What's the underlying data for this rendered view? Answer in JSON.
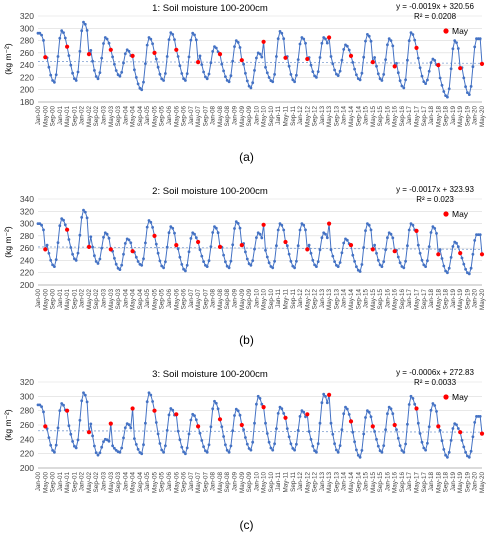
{
  "figure": {
    "captions": [
      "(a)",
      "(b)",
      "(c)"
    ]
  },
  "style": {
    "line_color": "#4472C4",
    "point_color": "#4472C4",
    "may_color": "#FF0000",
    "trend_color": "#7F9FD0",
    "grid_color": "#D9D9D9"
  },
  "chart_data": [
    {
      "type": "line",
      "title": "1: Soil moisture 100-200cm",
      "ylabel": "(kg m⁻²)",
      "ylim": [
        180,
        320
      ],
      "yticks": [
        180,
        200,
        220,
        240,
        260,
        280,
        300,
        320
      ],
      "grid": true,
      "legend": {
        "label": "May",
        "position": "top-right"
      },
      "equation": "y = -0.0019x + 320.56",
      "r2": "R² = 0.0208",
      "x_start": "2000-01",
      "xtick_labels": [
        "Jan-00",
        "May-00",
        "Sep-00",
        "Jan-01",
        "May-01",
        "Sep-01",
        "Jan-02",
        "May-02",
        "Sep-02",
        "Jan-03",
        "May-03",
        "Sep-03",
        "Jan-04",
        "May-04",
        "Sep-04",
        "Jan-05",
        "May-05",
        "Sep-05",
        "Jan-06",
        "May-06",
        "Sep-06",
        "Jan-07",
        "May-07",
        "Sep-07",
        "Jan-08",
        "May-08",
        "Sep-08",
        "Jan-09",
        "May-09",
        "Sep-09",
        "Jan-10",
        "May-10",
        "Sep-10",
        "Jan-11",
        "May-11",
        "Sep-11",
        "Jan-12",
        "May-12",
        "Sep-12",
        "Jan-13",
        "May-13",
        "Sep-13",
        "Jan-14",
        "May-14",
        "Sep-14",
        "Jan-15",
        "May-15",
        "Sep-15",
        "Jan-16",
        "May-16",
        "Sep-16",
        "Jan-17",
        "May-17",
        "Sep-17",
        "Jan-18",
        "May-18",
        "Sep-18",
        "Jan-19",
        "May-19",
        "Sep-19",
        "Jan-20",
        "May-20"
      ],
      "trend": [
        246,
        243
      ],
      "peaks": [
        292,
        296,
        310,
        285,
        265,
        285,
        293,
        292,
        270,
        280,
        260,
        295,
        285,
        285,
        273,
        290,
        283,
        293,
        250,
        280,
        283
      ],
      "troughs": [
        212,
        215,
        218,
        222,
        200,
        215,
        215,
        218,
        213,
        203,
        213,
        213,
        220,
        223,
        216,
        215,
        203,
        210,
        188,
        192
      ],
      "may_values": [
        253,
        270,
        258,
        265,
        255,
        260,
        265,
        245,
        258,
        248,
        278,
        252,
        250,
        285,
        255,
        245,
        238,
        268,
        240,
        235,
        242
      ]
    },
    {
      "type": "line",
      "title": "2: Soil moisture 100-200cm",
      "ylabel": "(kg m⁻²)",
      "ylim": [
        200,
        340
      ],
      "yticks": [
        200,
        220,
        240,
        260,
        280,
        300,
        320,
        340
      ],
      "grid": true,
      "legend": {
        "label": "May",
        "position": "top-right"
      },
      "equation": "y = -0.0017x + 323.93",
      "r2": "R² = 0.023",
      "x_start": "2000-01",
      "xtick_labels": [
        "Jan-00",
        "May-00",
        "Sep-00",
        "Jan-01",
        "May-01",
        "Sep-01",
        "Jan-02",
        "May-02",
        "Sep-02",
        "Jan-03",
        "May-03",
        "Sep-03",
        "Jan-04",
        "May-04",
        "Sep-04",
        "Jan-05",
        "May-05",
        "Sep-05",
        "Jan-06",
        "May-06",
        "Sep-06",
        "Jan-07",
        "May-07",
        "Sep-07",
        "Jan-08",
        "May-08",
        "Sep-08",
        "Jan-09",
        "May-09",
        "Sep-09",
        "Jan-10",
        "May-10",
        "Sep-10",
        "Jan-11",
        "May-11",
        "Sep-11",
        "Jan-12",
        "May-12",
        "Sep-12",
        "Jan-13",
        "May-13",
        "Sep-13",
        "Jan-14",
        "May-14",
        "Sep-14",
        "Jan-15",
        "May-15",
        "Sep-15",
        "Jan-16",
        "May-16",
        "Sep-16",
        "Jan-17",
        "May-17",
        "Sep-17",
        "Jan-18",
        "May-18",
        "Sep-18",
        "Jan-19",
        "May-19",
        "Sep-19",
        "Jan-20",
        "May-20"
      ],
      "trend": [
        262,
        258
      ],
      "peaks": [
        300,
        308,
        322,
        285,
        275,
        305,
        295,
        285,
        295,
        303,
        285,
        300,
        300,
        285,
        275,
        300,
        285,
        300,
        295,
        270,
        282
      ],
      "troughs": [
        230,
        240,
        235,
        225,
        232,
        228,
        223,
        230,
        228,
        232,
        228,
        228,
        230,
        230,
        222,
        230,
        228,
        230,
        220,
        218
      ],
      "may_values": [
        258,
        290,
        262,
        258,
        255,
        280,
        265,
        270,
        262,
        265,
        298,
        270,
        258,
        300,
        265,
        258,
        255,
        288,
        250,
        252,
        250
      ]
    },
    {
      "type": "line",
      "title": "3: Soil moisture 100-200cm",
      "ylabel": "(kg m⁻²)",
      "ylim": [
        200,
        320
      ],
      "yticks": [
        200,
        220,
        240,
        260,
        280,
        300,
        320
      ],
      "grid": true,
      "legend": {
        "label": "May",
        "position": "top-right"
      },
      "equation": "y = -0.0006x + 272.83",
      "r2": "R² = 0.0033",
      "x_start": "2000-01",
      "xtick_labels": [
        "Jan-00",
        "May-00",
        "Sep-00",
        "Jan-01",
        "May-01",
        "Sep-01",
        "Jan-02",
        "May-02",
        "Sep-02",
        "Jan-03",
        "May-03",
        "Sep-03",
        "Jan-04",
        "May-04",
        "Sep-04",
        "Jan-05",
        "May-05",
        "Sep-05",
        "Jan-06",
        "May-06",
        "Sep-06",
        "Jan-07",
        "May-07",
        "Sep-07",
        "Jan-08",
        "May-08",
        "Sep-08",
        "Jan-09",
        "May-09",
        "Sep-09",
        "Jan-10",
        "May-10",
        "Sep-10",
        "Jan-11",
        "May-11",
        "Sep-11",
        "Jan-12",
        "May-12",
        "Sep-12",
        "Jan-13",
        "May-13",
        "Sep-13",
        "Jan-14",
        "May-14",
        "Sep-14",
        "Jan-15",
        "May-15",
        "Sep-15",
        "Jan-16",
        "May-16",
        "Sep-16",
        "Jan-17",
        "May-17",
        "Sep-17",
        "Jan-18",
        "May-18",
        "Sep-18",
        "Jan-19",
        "May-19",
        "Sep-19",
        "Jan-20",
        "May-20"
      ],
      "trend": [
        252,
        250
      ],
      "peaks": [
        288,
        290,
        305,
        240,
        262,
        305,
        283,
        275,
        293,
        282,
        300,
        285,
        280,
        303,
        285,
        280,
        285,
        300,
        290,
        262,
        272
      ],
      "troughs": [
        222,
        228,
        218,
        222,
        220,
        222,
        220,
        222,
        222,
        225,
        225,
        225,
        222,
        222,
        215,
        222,
        222,
        225,
        215,
        215
      ],
      "may_values": [
        258,
        280,
        250,
        262,
        283,
        280,
        275,
        258,
        268,
        260,
        285,
        270,
        275,
        302,
        265,
        258,
        260,
        283,
        258,
        250,
        248
      ]
    }
  ]
}
